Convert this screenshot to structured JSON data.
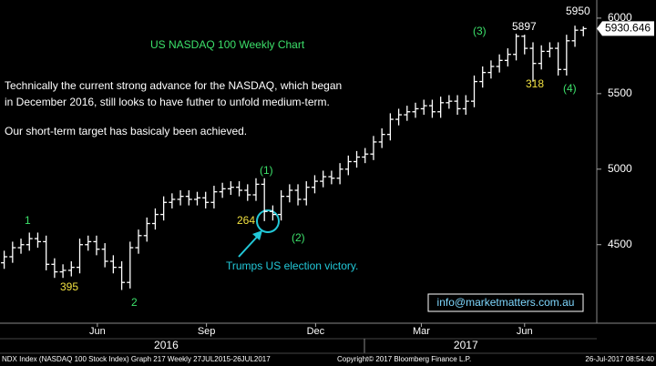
{
  "chart_data": {
    "type": "ohlc",
    "title": "US NASDAQ 100 Weekly Chart",
    "text_lines": [
      "Technically the current strong advance for the NASDAQ, which began",
      "in December 2016, still looks to have futher to unfold medium-term.",
      "Our short-term target has basicaly been achieved."
    ],
    "annotations": [
      "1",
      "395",
      "2",
      "264",
      "(1)",
      "(2)",
      "(3)",
      "5897",
      "318",
      "(4)",
      "5950",
      "Trumps US election victory."
    ],
    "info_box": "info@marketmatters.com.au",
    "color": "#ffffff",
    "open": [
      4380,
      4420,
      4480,
      4500,
      4540,
      4520,
      4370,
      4320,
      4330,
      4350,
      4500,
      4520,
      4470,
      4390,
      4350,
      4250,
      4480,
      4560,
      4640,
      4700,
      4780,
      4800,
      4820,
      4800,
      4810,
      4780,
      4850,
      4870,
      4880,
      4860,
      4830,
      4900,
      4720,
      4700,
      4820,
      4860,
      4800,
      4880,
      4920,
      4950,
      4940,
      5000,
      5050,
      5080,
      5100,
      5180,
      5230,
      5330,
      5360,
      5380,
      5400,
      5420,
      5380,
      5440,
      5450,
      5400,
      5450,
      5580,
      5640,
      5680,
      5720,
      5760,
      5880,
      5800,
      5700,
      5780,
      5800,
      5660,
      5850,
      5920
    ],
    "high": [
      4460,
      4520,
      4540,
      4580,
      4580,
      4560,
      4410,
      4370,
      4390,
      4540,
      4560,
      4560,
      4510,
      4430,
      4390,
      4520,
      4600,
      4680,
      4740,
      4820,
      4840,
      4860,
      4860,
      4850,
      4850,
      4890,
      4910,
      4920,
      4920,
      4900,
      4940,
      4940,
      4760,
      4860,
      4900,
      4900,
      4920,
      4960,
      4990,
      4990,
      5040,
      5090,
      5120,
      5140,
      5220,
      5270,
      5370,
      5400,
      5420,
      5440,
      5460,
      5460,
      5480,
      5490,
      5490,
      5490,
      5620,
      5680,
      5720,
      5760,
      5800,
      5897,
      5890,
      5840,
      5820,
      5840,
      5840,
      5890,
      5950,
      5945
    ],
    "low": [
      4340,
      4380,
      4440,
      4460,
      4480,
      4330,
      4280,
      4280,
      4290,
      4310,
      4460,
      4430,
      4350,
      4310,
      4200,
      4210,
      4440,
      4520,
      4600,
      4660,
      4740,
      4760,
      4760,
      4760,
      4740,
      4740,
      4810,
      4830,
      4820,
      4790,
      4790,
      4656,
      4660,
      4660,
      4780,
      4760,
      4760,
      4840,
      4880,
      4900,
      4900,
      4960,
      5010,
      5040,
      5060,
      5140,
      5190,
      5290,
      5320,
      5340,
      5360,
      5340,
      5340,
      5400,
      5360,
      5360,
      5410,
      5540,
      5600,
      5640,
      5680,
      5720,
      5760,
      5579,
      5660,
      5740,
      5620,
      5620,
      5810,
      5880
    ],
    "close": [
      4420,
      4480,
      4500,
      4540,
      4520,
      4370,
      4320,
      4330,
      4350,
      4500,
      4520,
      4470,
      4390,
      4350,
      4250,
      4480,
      4560,
      4640,
      4700,
      4780,
      4800,
      4820,
      4800,
      4810,
      4780,
      4850,
      4870,
      4880,
      4860,
      4830,
      4900,
      4720,
      4700,
      4820,
      4860,
      4800,
      4880,
      4920,
      4950,
      4940,
      5000,
      5050,
      5080,
      5100,
      5180,
      5230,
      5330,
      5360,
      5380,
      5400,
      5420,
      5380,
      5440,
      5450,
      5400,
      5450,
      5580,
      5640,
      5680,
      5720,
      5760,
      5880,
      5800,
      5700,
      5780,
      5800,
      5660,
      5850,
      5920,
      5930.646
    ],
    "xlim": [
      -0.5,
      70.6
    ],
    "xticks": [
      {
        "value": 11.1,
        "label": "Jun"
      },
      {
        "value": 24.1,
        "label": "Sep"
      },
      {
        "value": 37.1,
        "label": "Dec"
      },
      {
        "value": 49.7,
        "label": "Mar"
      },
      {
        "value": 62,
        "label": "Jun"
      }
    ],
    "year_ticks": [
      {
        "value": 19.3,
        "label": "2016"
      },
      {
        "value": 55,
        "label": "2017"
      }
    ],
    "ylim": [
      3980,
      6120
    ],
    "yticks": [
      4500,
      5000,
      5500,
      6000
    ],
    "grid": false
  },
  "footer": {
    "left": "NDX Index (NASDAQ 100 Stock Index) Graph 217  Weekly 27JUL2015-26JUL2017",
    "center": "Copyright© 2017 Bloomberg Finance L.P.",
    "right": "26-Jul-2017 08:54:40"
  }
}
